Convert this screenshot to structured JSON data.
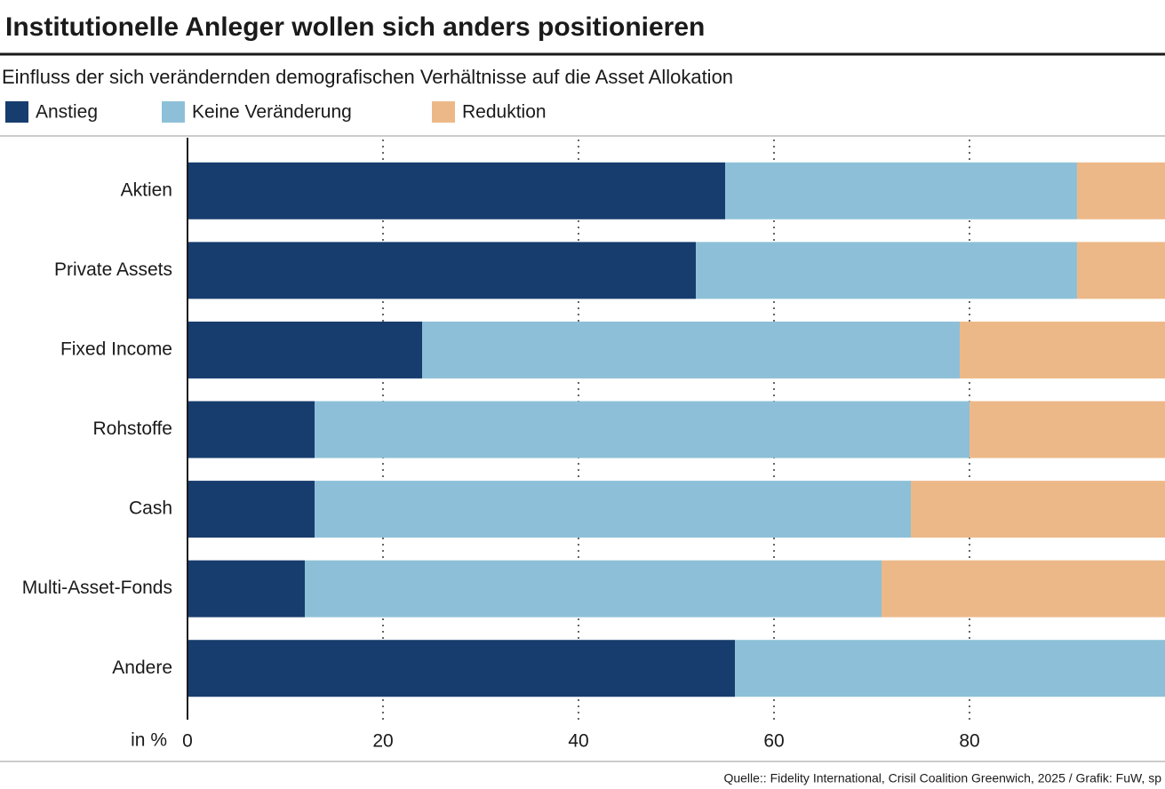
{
  "chart_data": {
    "type": "stacked-barh",
    "title": "Institutionelle Anleger wollen sich anders positionieren",
    "subtitle": "Einfluss der sich verändernden demografischen Verhältnisse auf die Asset Allokation",
    "categories": [
      "Aktien",
      "Private Assets",
      "Fixed Income",
      "Rohstoffe",
      "Cash",
      "Multi-Asset-Fonds",
      "Andere"
    ],
    "series": [
      {
        "name": "Anstieg",
        "color": "#173d6e",
        "values": [
          55,
          52,
          24,
          13,
          13,
          12,
          56
        ]
      },
      {
        "name": "Keine Veränderung",
        "color": "#8dc0d8",
        "values": [
          36,
          39,
          55,
          67,
          61,
          59,
          44
        ]
      },
      {
        "name": "Reduktion",
        "color": "#edb888",
        "values": [
          9,
          9,
          21,
          20,
          26,
          29,
          0
        ]
      }
    ],
    "xlim": [
      0,
      100
    ],
    "xticks": [
      0,
      20,
      40,
      60,
      80
    ],
    "xlabel": "in %",
    "grid": true,
    "source": "Quelle:: Fidelity International, Crisil Coalition Greenwich, 2025 / Grafik: FuW, sp"
  }
}
